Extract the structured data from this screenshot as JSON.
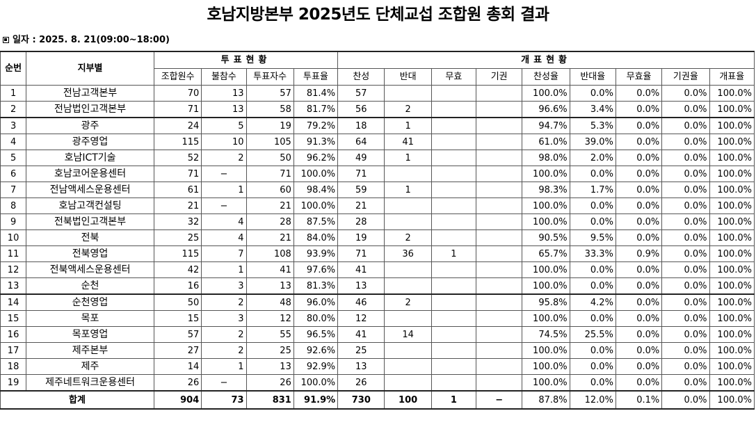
{
  "title": "호남지방본부 2025년도 단체교섭 조합원 총회 결과",
  "date_label": "일자 : 2025. 8. 21(09:00~18:00)",
  "headers": {
    "no": "순번",
    "branch": "지부별",
    "vote_status": "투표현황",
    "count_status": "개표현황",
    "members": "조합원수",
    "absent": "불참수",
    "voters": "투표자수",
    "turnout": "투표율",
    "yes": "찬성",
    "no_vote": "반대",
    "invalid": "무효",
    "abstain": "기권",
    "yes_rate": "찬성율",
    "no_rate": "반대율",
    "invalid_rate": "무효율",
    "abstain_rate": "기권율",
    "count_rate": "개표율"
  },
  "rows": [
    {
      "no": "1",
      "name": "전남고객본부",
      "members": "70",
      "absent": "13",
      "voters": "57",
      "turnout": "81.4%",
      "yes": "57",
      "against": "",
      "invalid": "",
      "abstain": "",
      "yes_rate": "100.0%",
      "no_rate": "0.0%",
      "invalid_rate": "0.0%",
      "abstain_rate": "0.0%",
      "count_rate": "100.0%"
    },
    {
      "no": "2",
      "name": "전남법인고객본부",
      "members": "71",
      "absent": "13",
      "voters": "58",
      "turnout": "81.7%",
      "yes": "56",
      "against": "2",
      "invalid": "",
      "abstain": "",
      "yes_rate": "96.6%",
      "no_rate": "3.4%",
      "invalid_rate": "0.0%",
      "abstain_rate": "0.0%",
      "count_rate": "100.0%"
    },
    {
      "no": "3",
      "name": "광주",
      "members": "24",
      "absent": "5",
      "voters": "19",
      "turnout": "79.2%",
      "yes": "18",
      "against": "1",
      "invalid": "",
      "abstain": "",
      "yes_rate": "94.7%",
      "no_rate": "5.3%",
      "invalid_rate": "0.0%",
      "abstain_rate": "0.0%",
      "count_rate": "100.0%"
    },
    {
      "no": "4",
      "name": "광주영업",
      "members": "115",
      "absent": "10",
      "voters": "105",
      "turnout": "91.3%",
      "yes": "64",
      "against": "41",
      "invalid": "",
      "abstain": "",
      "yes_rate": "61.0%",
      "no_rate": "39.0%",
      "invalid_rate": "0.0%",
      "abstain_rate": "0.0%",
      "count_rate": "100.0%"
    },
    {
      "no": "5",
      "name": "호남ICT기술",
      "members": "52",
      "absent": "2",
      "voters": "50",
      "turnout": "96.2%",
      "yes": "49",
      "against": "1",
      "invalid": "",
      "abstain": "",
      "yes_rate": "98.0%",
      "no_rate": "2.0%",
      "invalid_rate": "0.0%",
      "abstain_rate": "0.0%",
      "count_rate": "100.0%"
    },
    {
      "no": "6",
      "name": "호남코어운용센터",
      "members": "71",
      "absent": "−",
      "voters": "71",
      "turnout": "100.0%",
      "yes": "71",
      "against": "",
      "invalid": "",
      "abstain": "",
      "yes_rate": "100.0%",
      "no_rate": "0.0%",
      "invalid_rate": "0.0%",
      "abstain_rate": "0.0%",
      "count_rate": "100.0%"
    },
    {
      "no": "7",
      "name": "전남액세스운용센터",
      "members": "61",
      "absent": "1",
      "voters": "60",
      "turnout": "98.4%",
      "yes": "59",
      "against": "1",
      "invalid": "",
      "abstain": "",
      "yes_rate": "98.3%",
      "no_rate": "1.7%",
      "invalid_rate": "0.0%",
      "abstain_rate": "0.0%",
      "count_rate": "100.0%"
    },
    {
      "no": "8",
      "name": "호남고객컨설팅",
      "members": "21",
      "absent": "−",
      "voters": "21",
      "turnout": "100.0%",
      "yes": "21",
      "against": "",
      "invalid": "",
      "abstain": "",
      "yes_rate": "100.0%",
      "no_rate": "0.0%",
      "invalid_rate": "0.0%",
      "abstain_rate": "0.0%",
      "count_rate": "100.0%"
    },
    {
      "no": "9",
      "name": "전북법인고객본부",
      "members": "32",
      "absent": "4",
      "voters": "28",
      "turnout": "87.5%",
      "yes": "28",
      "against": "",
      "invalid": "",
      "abstain": "",
      "yes_rate": "100.0%",
      "no_rate": "0.0%",
      "invalid_rate": "0.0%",
      "abstain_rate": "0.0%",
      "count_rate": "100.0%"
    },
    {
      "no": "10",
      "name": "전북",
      "members": "25",
      "absent": "4",
      "voters": "21",
      "turnout": "84.0%",
      "yes": "19",
      "against": "2",
      "invalid": "",
      "abstain": "",
      "yes_rate": "90.5%",
      "no_rate": "9.5%",
      "invalid_rate": "0.0%",
      "abstain_rate": "0.0%",
      "count_rate": "100.0%"
    },
    {
      "no": "11",
      "name": "전북영업",
      "members": "115",
      "absent": "7",
      "voters": "108",
      "turnout": "93.9%",
      "yes": "71",
      "against": "36",
      "invalid": "1",
      "abstain": "",
      "yes_rate": "65.7%",
      "no_rate": "33.3%",
      "invalid_rate": "0.9%",
      "abstain_rate": "0.0%",
      "count_rate": "100.0%"
    },
    {
      "no": "12",
      "name": "전북액세스운용센터",
      "members": "42",
      "absent": "1",
      "voters": "41",
      "turnout": "97.6%",
      "yes": "41",
      "against": "",
      "invalid": "",
      "abstain": "",
      "yes_rate": "100.0%",
      "no_rate": "0.0%",
      "invalid_rate": "0.0%",
      "abstain_rate": "0.0%",
      "count_rate": "100.0%"
    },
    {
      "no": "13",
      "name": "순천",
      "members": "16",
      "absent": "3",
      "voters": "13",
      "turnout": "81.3%",
      "yes": "13",
      "against": "",
      "invalid": "",
      "abstain": "",
      "yes_rate": "100.0%",
      "no_rate": "0.0%",
      "invalid_rate": "0.0%",
      "abstain_rate": "0.0%",
      "count_rate": "100.0%"
    },
    {
      "no": "14",
      "name": "순천영업",
      "members": "50",
      "absent": "2",
      "voters": "48",
      "turnout": "96.0%",
      "yes": "46",
      "against": "2",
      "invalid": "",
      "abstain": "",
      "yes_rate": "95.8%",
      "no_rate": "4.2%",
      "invalid_rate": "0.0%",
      "abstain_rate": "0.0%",
      "count_rate": "100.0%"
    },
    {
      "no": "15",
      "name": "목포",
      "members": "15",
      "absent": "3",
      "voters": "12",
      "turnout": "80.0%",
      "yes": "12",
      "against": "",
      "invalid": "",
      "abstain": "",
      "yes_rate": "100.0%",
      "no_rate": "0.0%",
      "invalid_rate": "0.0%",
      "abstain_rate": "0.0%",
      "count_rate": "100.0%"
    },
    {
      "no": "16",
      "name": "목포영업",
      "members": "57",
      "absent": "2",
      "voters": "55",
      "turnout": "96.5%",
      "yes": "41",
      "against": "14",
      "invalid": "",
      "abstain": "",
      "yes_rate": "74.5%",
      "no_rate": "25.5%",
      "invalid_rate": "0.0%",
      "abstain_rate": "0.0%",
      "count_rate": "100.0%"
    },
    {
      "no": "17",
      "name": "제주본부",
      "members": "27",
      "absent": "2",
      "voters": "25",
      "turnout": "92.6%",
      "yes": "25",
      "against": "",
      "invalid": "",
      "abstain": "",
      "yes_rate": "100.0%",
      "no_rate": "0.0%",
      "invalid_rate": "0.0%",
      "abstain_rate": "0.0%",
      "count_rate": "100.0%"
    },
    {
      "no": "18",
      "name": "제주",
      "members": "14",
      "absent": "1",
      "voters": "13",
      "turnout": "92.9%",
      "yes": "13",
      "against": "",
      "invalid": "",
      "abstain": "",
      "yes_rate": "100.0%",
      "no_rate": "0.0%",
      "invalid_rate": "0.0%",
      "abstain_rate": "0.0%",
      "count_rate": "100.0%"
    },
    {
      "no": "19",
      "name": "제주네트워크운용센터",
      "members": "26",
      "absent": "−",
      "voters": "26",
      "turnout": "100.0%",
      "yes": "26",
      "against": "",
      "invalid": "",
      "abstain": "",
      "yes_rate": "100.0%",
      "no_rate": "0.0%",
      "invalid_rate": "0.0%",
      "abstain_rate": "0.0%",
      "count_rate": "100.0%"
    }
  ],
  "total": {
    "label": "합계",
    "members": "904",
    "absent": "73",
    "voters": "831",
    "turnout": "91.9%",
    "yes": "730",
    "against": "100",
    "invalid": "1",
    "abstain": "−",
    "yes_rate": "87.8%",
    "no_rate": "12.0%",
    "invalid_rate": "0.1%",
    "abstain_rate": "0.0%",
    "count_rate": "100.0%"
  },
  "separator_rows": [
    3,
    14
  ]
}
